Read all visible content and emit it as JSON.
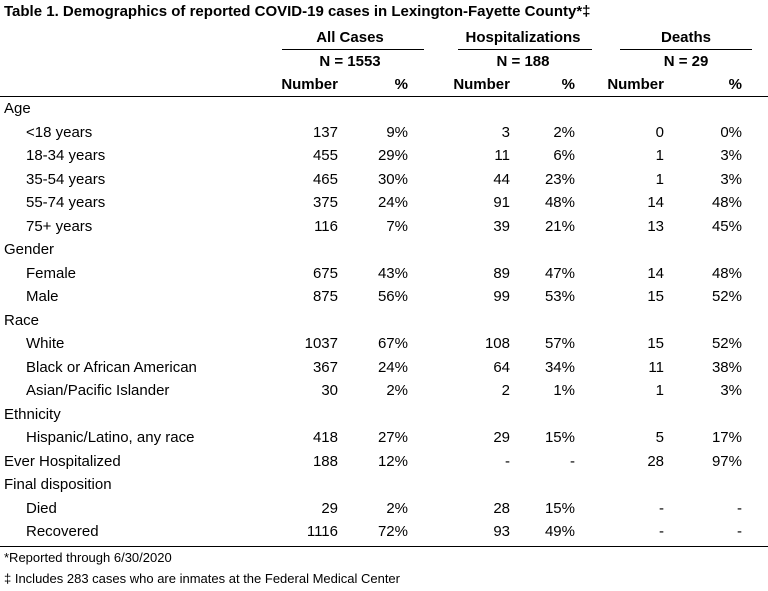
{
  "title": "Table 1. Demographics of reported COVID-19 cases in Lexington-Fayette County*‡",
  "groups": [
    {
      "label": "All Cases",
      "n": "N = 1553"
    },
    {
      "label": "Hospitalizations",
      "n": "N = 188"
    },
    {
      "label": "Deaths",
      "n": "N = 29"
    }
  ],
  "subheaders": [
    "Number",
    "%",
    "Number",
    "%",
    "Number",
    "%"
  ],
  "rows": [
    {
      "type": "category",
      "label": "Age"
    },
    {
      "type": "item",
      "label": "<18 years",
      "values": [
        "137",
        "9%",
        "3",
        "2%",
        "0",
        "0%"
      ]
    },
    {
      "type": "item",
      "label": "18-34 years",
      "values": [
        "455",
        "29%",
        "11",
        "6%",
        "1",
        "3%"
      ]
    },
    {
      "type": "item",
      "label": "35-54 years",
      "values": [
        "465",
        "30%",
        "44",
        "23%",
        "1",
        "3%"
      ]
    },
    {
      "type": "item",
      "label": "55-74 years",
      "values": [
        "375",
        "24%",
        "91",
        "48%",
        "14",
        "48%"
      ]
    },
    {
      "type": "item",
      "label": "75+ years",
      "values": [
        "116",
        "7%",
        "39",
        "21%",
        "13",
        "45%"
      ]
    },
    {
      "type": "category",
      "label": "Gender"
    },
    {
      "type": "item",
      "label": "Female",
      "values": [
        "675",
        "43%",
        "89",
        "47%",
        "14",
        "48%"
      ]
    },
    {
      "type": "item",
      "label": "Male",
      "values": [
        "875",
        "56%",
        "99",
        "53%",
        "15",
        "52%"
      ]
    },
    {
      "type": "category",
      "label": "Race"
    },
    {
      "type": "item",
      "label": "White",
      "values": [
        "1037",
        "67%",
        "108",
        "57%",
        "15",
        "52%"
      ]
    },
    {
      "type": "item",
      "label": "Black or African American",
      "values": [
        "367",
        "24%",
        "64",
        "34%",
        "11",
        "38%"
      ]
    },
    {
      "type": "item",
      "label": "Asian/Pacific Islander",
      "values": [
        "30",
        "2%",
        "2",
        "1%",
        "1",
        "3%"
      ]
    },
    {
      "type": "category",
      "label": "Ethnicity"
    },
    {
      "type": "item",
      "label": "Hispanic/Latino, any race",
      "values": [
        "418",
        "27%",
        "29",
        "15%",
        "5",
        "17%"
      ]
    },
    {
      "type": "toplevel",
      "label": "Ever Hospitalized",
      "values": [
        "188",
        "12%",
        "-",
        "-",
        "28",
        "97%"
      ]
    },
    {
      "type": "category",
      "label": "Final disposition"
    },
    {
      "type": "item",
      "label": "Died",
      "values": [
        "29",
        "2%",
        "28",
        "15%",
        "-",
        "-"
      ]
    },
    {
      "type": "item",
      "label": "Recovered",
      "values": [
        "1116",
        "72%",
        "93",
        "49%",
        "-",
        "-"
      ]
    }
  ],
  "footnotes": [
    "*Reported through 6/30/2020",
    "‡ Includes 283 cases who are inmates at the Federal Medical Center"
  ]
}
